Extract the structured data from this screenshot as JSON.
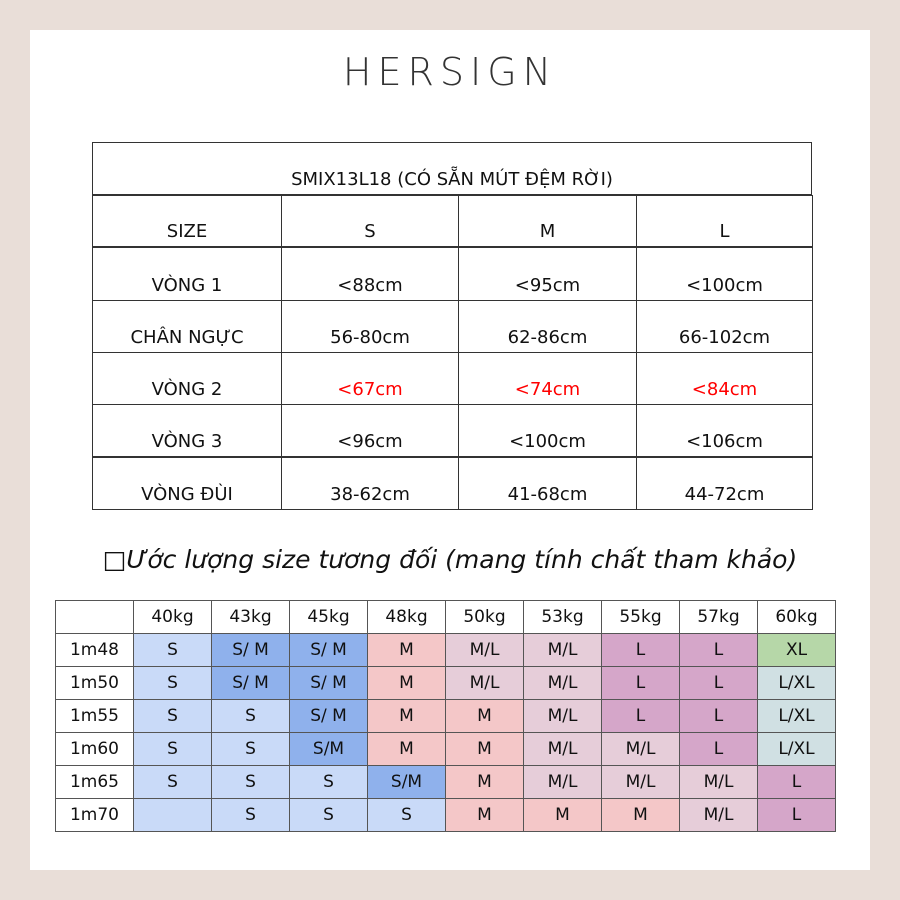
{
  "header": {
    "logo": "HERSIGN"
  },
  "size_table": {
    "title": "SMIX13L18 (CÓ SẴN MÚT ĐỆM RỜI)",
    "header": [
      "SIZE",
      "S",
      "M",
      "L"
    ],
    "rows": [
      [
        "VÒNG 1",
        "<88cm",
        "<95cm",
        "<100cm"
      ],
      [
        "CHÂN NGỰC",
        "56-80cm",
        "62-86cm",
        "66-102cm"
      ],
      [
        "VÒNG 2",
        "<67cm",
        "<74cm",
        "<84cm"
      ],
      [
        "VÒNG 3",
        "<96cm",
        "<100cm",
        "<106cm"
      ],
      [
        "VÒNG ĐÙI",
        "38-62cm",
        "41-68cm",
        "44-72cm"
      ]
    ],
    "highlight": {
      "row": 2,
      "color": "#ff0000"
    }
  },
  "estimate": {
    "heading": "□Ước lượng size tương đối (mang tính chất tham khảo)",
    "columns": [
      "40kg",
      "43kg",
      "45kg",
      "48kg",
      "50kg",
      "53kg",
      "55kg",
      "57kg",
      "60kg"
    ],
    "rows": [
      {
        "label": "1m48",
        "cells": [
          "S",
          "S/ M",
          "S/ M",
          "M",
          "M/L",
          "M/L",
          "L",
          "L",
          "XL"
        ],
        "colors": [
          "#c9daf8",
          "#8fb1ec",
          "#8fb1ec",
          "#f4c7c8",
          "#e6cdd9",
          "#e6cdd9",
          "#d5a6c9",
          "#d5a6c9",
          "#b6d7a8"
        ]
      },
      {
        "label": "1m50",
        "cells": [
          "S",
          "S/ M",
          "S/ M",
          "M",
          "M/L",
          "M/L",
          "L",
          "L",
          "L/XL"
        ],
        "colors": [
          "#c9daf8",
          "#8fb1ec",
          "#8fb1ec",
          "#f4c7c8",
          "#e6cdd9",
          "#e6cdd9",
          "#d5a6c9",
          "#d5a6c9",
          "#d0e0e3"
        ]
      },
      {
        "label": "1m55",
        "cells": [
          "S",
          "S",
          "S/ M",
          "M",
          "M",
          "M/L",
          "L",
          "L",
          "L/XL"
        ],
        "colors": [
          "#c9daf8",
          "#c9daf8",
          "#8fb1ec",
          "#f4c7c8",
          "#f4c7c8",
          "#e6cdd9",
          "#d5a6c9",
          "#d5a6c9",
          "#d0e0e3"
        ]
      },
      {
        "label": "1m60",
        "cells": [
          "S",
          "S",
          "S/M",
          "M",
          "M",
          "M/L",
          "M/L",
          "L",
          "L/XL"
        ],
        "colors": [
          "#c9daf8",
          "#c9daf8",
          "#8fb1ec",
          "#f4c7c8",
          "#f4c7c8",
          "#e6cdd9",
          "#e6cdd9",
          "#d5a6c9",
          "#d0e0e3"
        ]
      },
      {
        "label": "1m65",
        "cells": [
          "S",
          "S",
          "S",
          "S/M",
          "M",
          "M/L",
          "M/L",
          "M/L",
          "L"
        ],
        "colors": [
          "#c9daf8",
          "#c9daf8",
          "#c9daf8",
          "#8fb1ec",
          "#f4c7c8",
          "#e6cdd9",
          "#e6cdd9",
          "#e6cdd9",
          "#d5a6c9"
        ]
      },
      {
        "label": "1m70",
        "cells": [
          null,
          "S",
          "S",
          "S",
          "M",
          "M",
          "M",
          "M/L",
          "L"
        ],
        "colors": [
          "#c9daf8",
          "#c9daf8",
          "#c9daf8",
          "#c9daf8",
          "#f4c7c8",
          "#f4c7c8",
          "#f4c7c8",
          "#e6cdd9",
          "#d5a6c9"
        ]
      }
    ]
  }
}
